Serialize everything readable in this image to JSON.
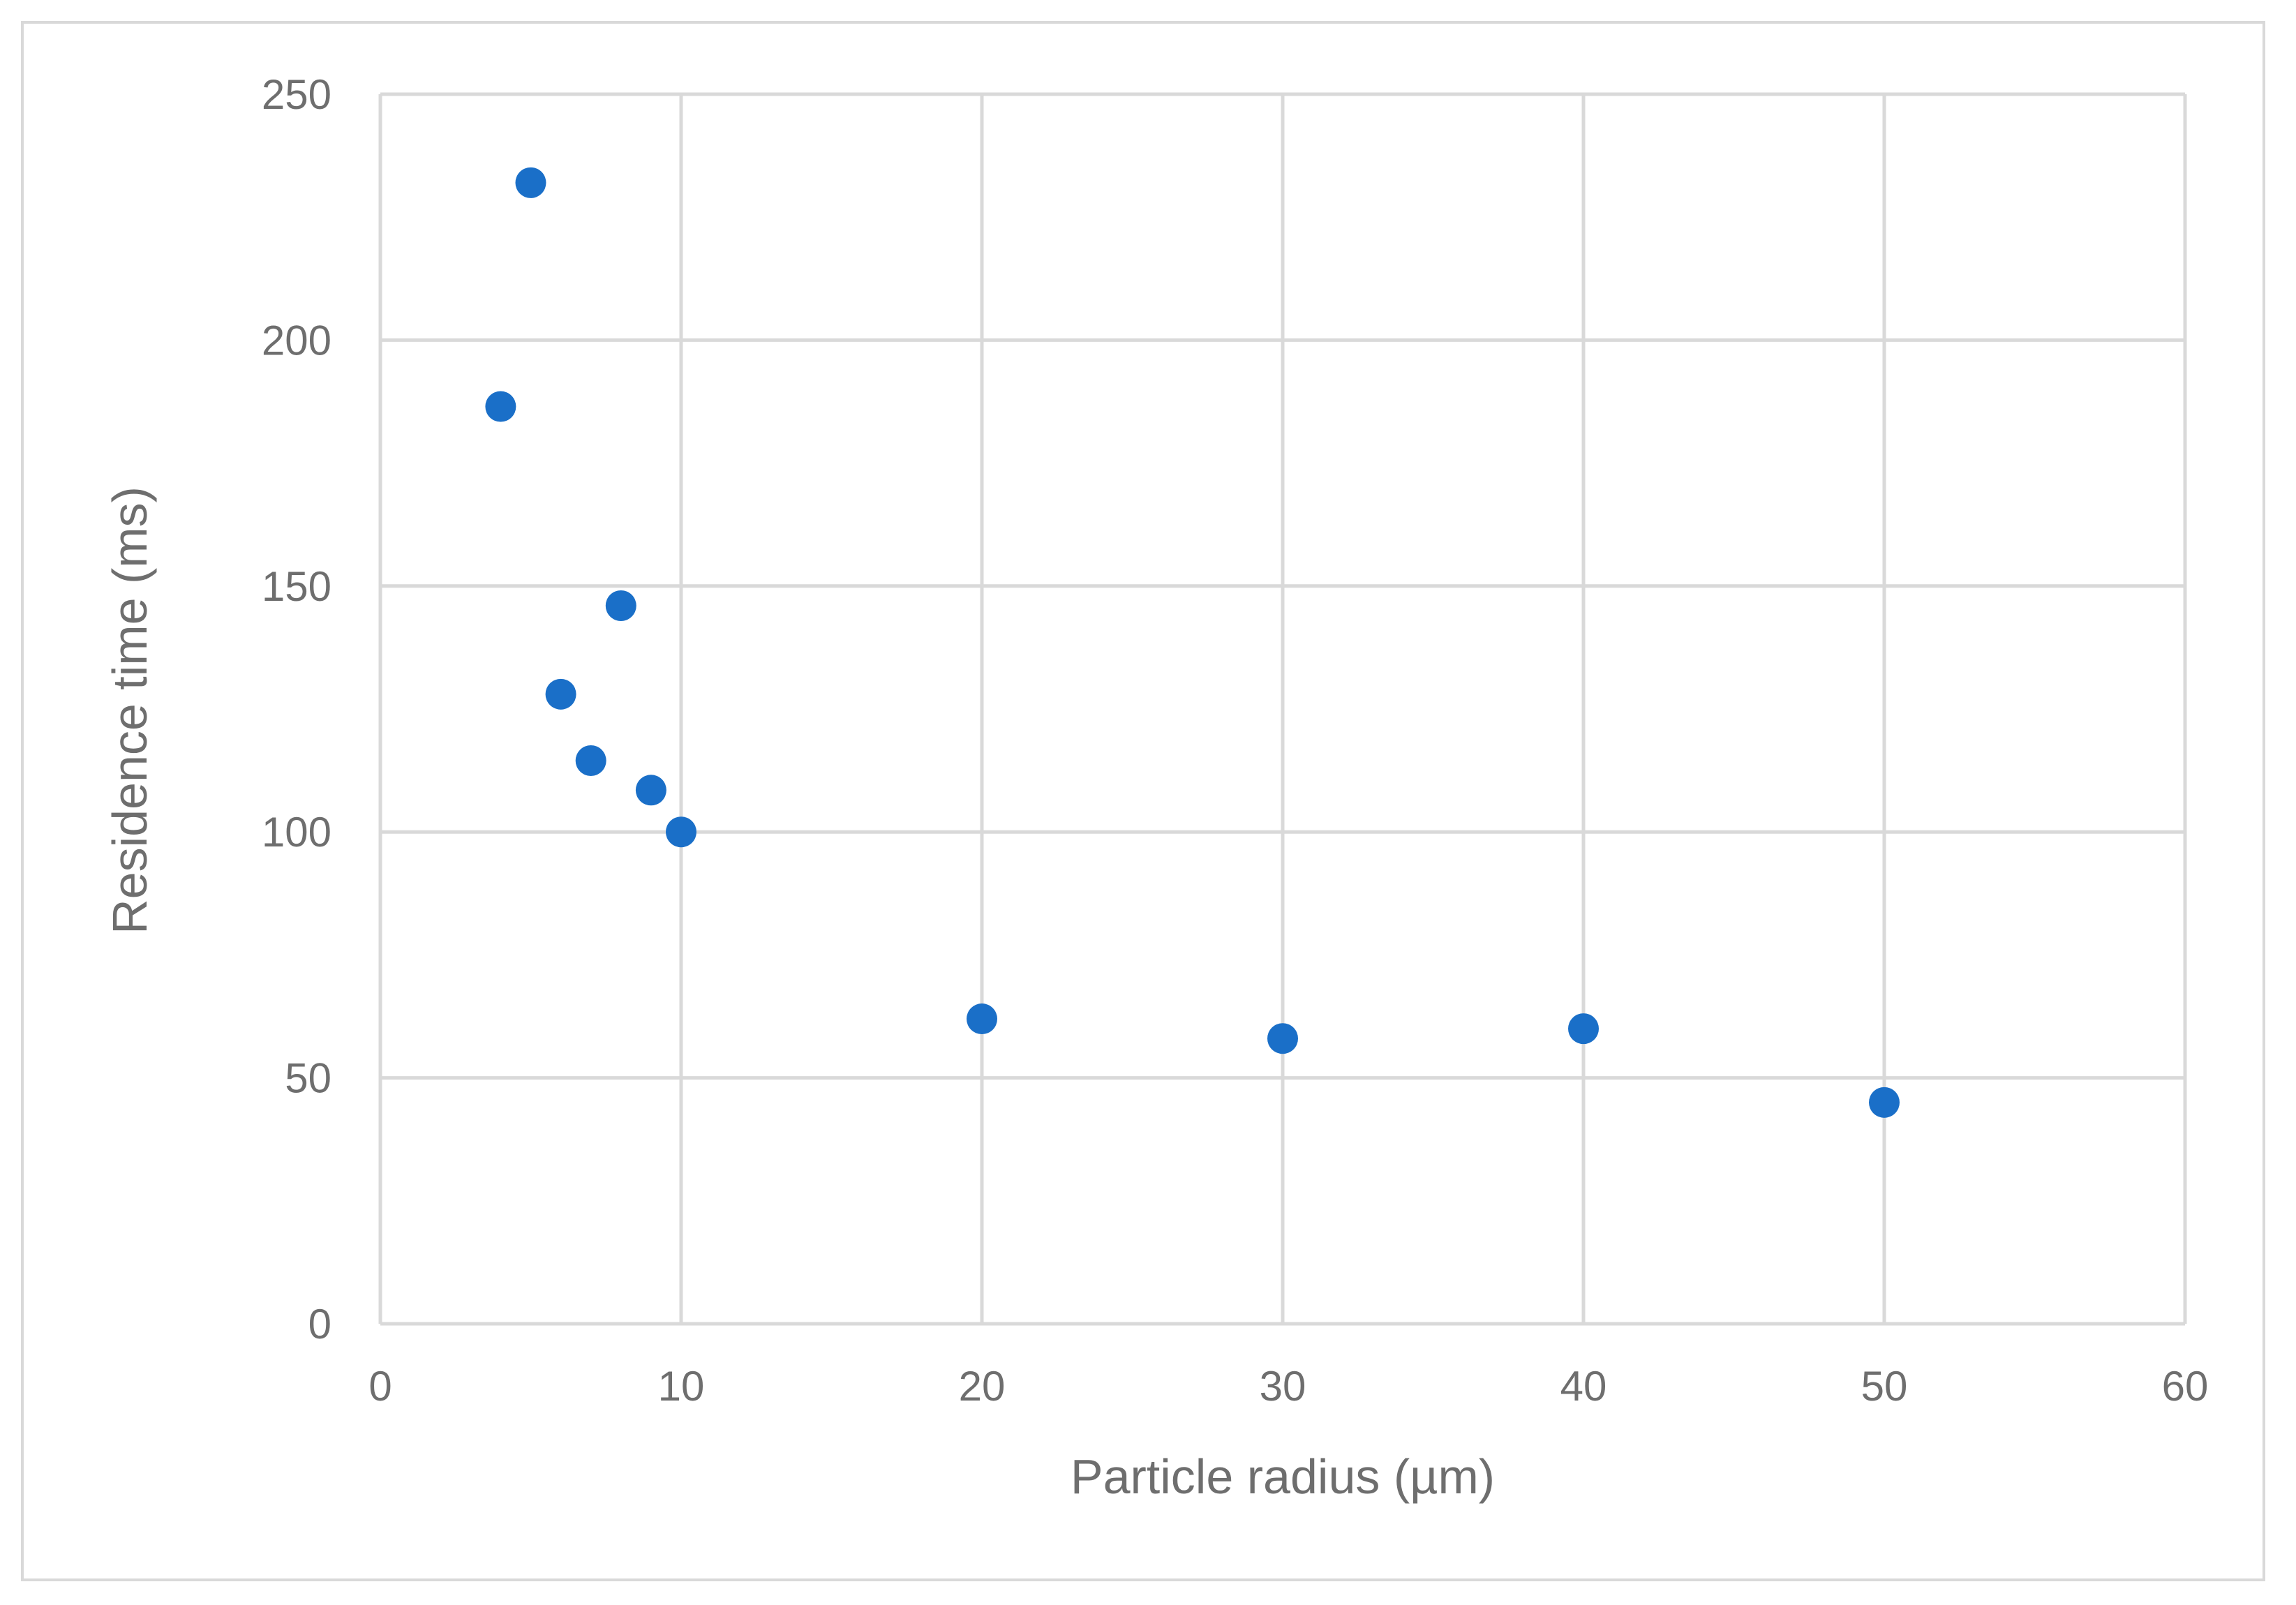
{
  "chart_data": {
    "type": "scatter",
    "xlabel": "Particle radius (µm)",
    "ylabel": "Residence  time (ms)",
    "xlim": [
      0,
      60
    ],
    "ylim": [
      0,
      250
    ],
    "x_ticks": [
      "0",
      "10",
      "20",
      "30",
      "40",
      "50",
      "60"
    ],
    "y_ticks": [
      "0",
      "50",
      "100",
      "150",
      "200",
      "250"
    ],
    "grid": true,
    "legend": "none",
    "marker_color": "#1a6fc8",
    "series": [
      {
        "points": [
          {
            "x": 4,
            "y": 186.5
          },
          {
            "x": 5,
            "y": 232
          },
          {
            "x": 6,
            "y": 128
          },
          {
            "x": 7,
            "y": 114.5
          },
          {
            "x": 8,
            "y": 146
          },
          {
            "x": 9,
            "y": 108.5
          },
          {
            "x": 10,
            "y": 100
          },
          {
            "x": 20,
            "y": 62
          },
          {
            "x": 30,
            "y": 58
          },
          {
            "x": 40,
            "y": 60
          },
          {
            "x": 50,
            "y": 45
          }
        ]
      }
    ]
  }
}
